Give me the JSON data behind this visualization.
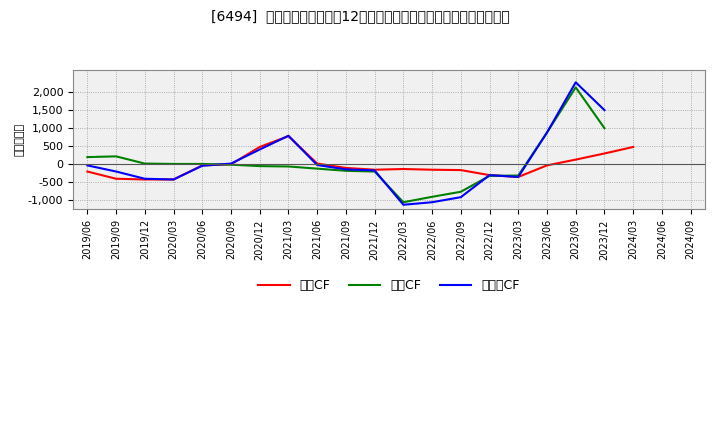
{
  "title": "[6494]  キャッシュフローの12か月移動合計の対前年同期増減額の推移",
  "ylabel": "（百万円）",
  "background_color": "#ffffff",
  "plot_bg_color": "#f0f0f0",
  "grid_color": "#999999",
  "x_labels": [
    "2019/06",
    "2019/09",
    "2019/12",
    "2020/03",
    "2020/06",
    "2020/09",
    "2020/12",
    "2021/03",
    "2021/06",
    "2021/09",
    "2021/12",
    "2022/03",
    "2022/06",
    "2022/09",
    "2022/12",
    "2023/03",
    "2023/06",
    "2023/09",
    "2023/12",
    "2024/03",
    "2024/06",
    "2024/09"
  ],
  "eigyo_cf": [
    -200,
    -400,
    -420,
    -420,
    -30,
    0,
    480,
    780,
    20,
    -100,
    -150,
    -130,
    -150,
    -160,
    -300,
    -350,
    -30,
    130,
    300,
    480,
    null,
    null
  ],
  "toshi_cf": [
    200,
    220,
    20,
    10,
    10,
    -10,
    -50,
    -60,
    -120,
    -180,
    -200,
    -1050,
    -900,
    -760,
    -320,
    -310,
    880,
    2130,
    1000,
    null,
    null,
    null
  ],
  "free_cf": [
    -30,
    -200,
    -400,
    -420,
    -40,
    20,
    410,
    790,
    -20,
    -140,
    -170,
    -1120,
    -1050,
    -910,
    -300,
    -350,
    880,
    2270,
    1500,
    null,
    null,
    null
  ],
  "eigyo_color": "#ff0000",
  "toshi_color": "#008000",
  "free_color": "#0000ff",
  "ylim_min": -1250,
  "ylim_max": 2600,
  "yticks": [
    -1000,
    -500,
    0,
    500,
    1000,
    1500,
    2000
  ],
  "legend_labels": [
    "営業CF",
    "投資CF",
    "フリーCF"
  ]
}
